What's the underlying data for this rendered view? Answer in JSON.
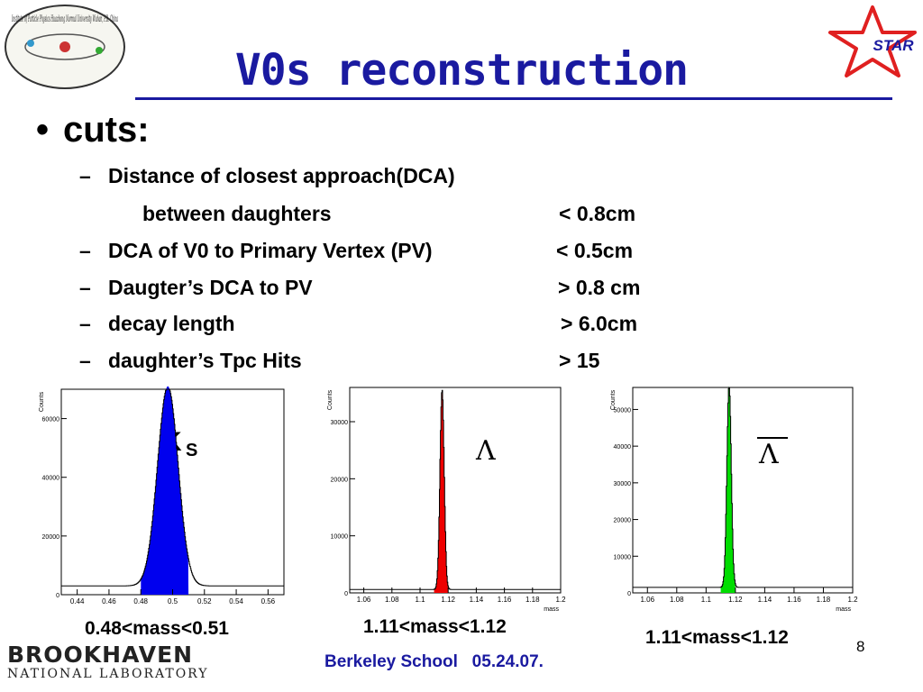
{
  "slide": {
    "title": "V0s reconstruction",
    "bullet": "cuts:",
    "cuts": [
      {
        "label": "Distance of closest approach(DCA)",
        "value": ""
      },
      {
        "label": "between daughters",
        "value": "< 0.8cm"
      },
      {
        "label": "DCA of V0 to Primary Vertex (PV)",
        "value": "< 0.5cm"
      },
      {
        "label": "Daugter’s DCA to PV",
        "value": "> 0.8 cm"
      },
      {
        "label": "decay length",
        "value": "> 6.0cm"
      },
      {
        "label": "daughter’s Tpc Hits",
        "value": "> 15"
      }
    ],
    "footer": "Berkeley School   05.24.07.",
    "page_number": "8",
    "logos": {
      "left_ipp": "Institute of Particle Physics Huazhong Normal University Wuhan, P.R. China",
      "right_star": "STAR",
      "bottom_left_top": "BROOKHAVEN",
      "bottom_left_bottom": "NATIONAL LABORATORY"
    },
    "captions": [
      "0.48<mass<0.51",
      "1.11<mass<1.12",
      "1.11<mass<1.12"
    ],
    "plot_labels": [
      "K",
      "S",
      "Λ",
      "Λ"
    ],
    "colors": {
      "title": "#1a1aa0",
      "ks": "#0000ee",
      "lambda": "#ee0000",
      "antilambda": "#00dd00"
    }
  },
  "chart_data": [
    {
      "type": "bar",
      "ylabel": "Counts",
      "xlabel": "",
      "xticks": [
        "0.44",
        "0.46",
        "0.48",
        "0.5",
        "0.52",
        "0.54",
        "0.56"
      ],
      "yticks": [
        "0",
        "20000",
        "40000",
        "60000"
      ],
      "xlim": [
        0.43,
        0.57
      ],
      "ylim": [
        0,
        70000
      ],
      "peak": {
        "center": 0.497,
        "height": 68000,
        "sigma": 0.0065
      },
      "background": 3000,
      "fill_range": [
        0.48,
        0.51
      ],
      "label": "Ks",
      "fill_color": "#0000ee"
    },
    {
      "type": "bar",
      "ylabel": "Counts",
      "xlabel": "mass",
      "xticks": [
        "1.06",
        "1.08",
        "1.1",
        "1.12",
        "1.14",
        "1.16",
        "1.18",
        "1.2"
      ],
      "yticks": [
        "0",
        "10000",
        "20000",
        "30000"
      ],
      "xlim": [
        1.05,
        1.2
      ],
      "ylim": [
        0,
        36000
      ],
      "peak": {
        "center": 1.1157,
        "height": 35000,
        "sigma": 0.0015
      },
      "background": 600,
      "fill_range": [
        1.11,
        1.12
      ],
      "label": "Λ",
      "fill_color": "#ee0000"
    },
    {
      "type": "bar",
      "ylabel": "Counts",
      "xlabel": "mass",
      "xticks": [
        "1.06",
        "1.08",
        "1.1",
        "1.12",
        "1.14",
        "1.16",
        "1.18",
        "1.2"
      ],
      "yticks": [
        "0",
        "10000",
        "20000",
        "30000",
        "40000",
        "50000"
      ],
      "xlim": [
        1.05,
        1.2
      ],
      "ylim": [
        0,
        56000
      ],
      "peak": {
        "center": 1.1157,
        "height": 55000,
        "sigma": 0.0015
      },
      "background": 1500,
      "fill_range": [
        1.11,
        1.12
      ],
      "label": "anti-Λ",
      "fill_color": "#00dd00"
    }
  ]
}
